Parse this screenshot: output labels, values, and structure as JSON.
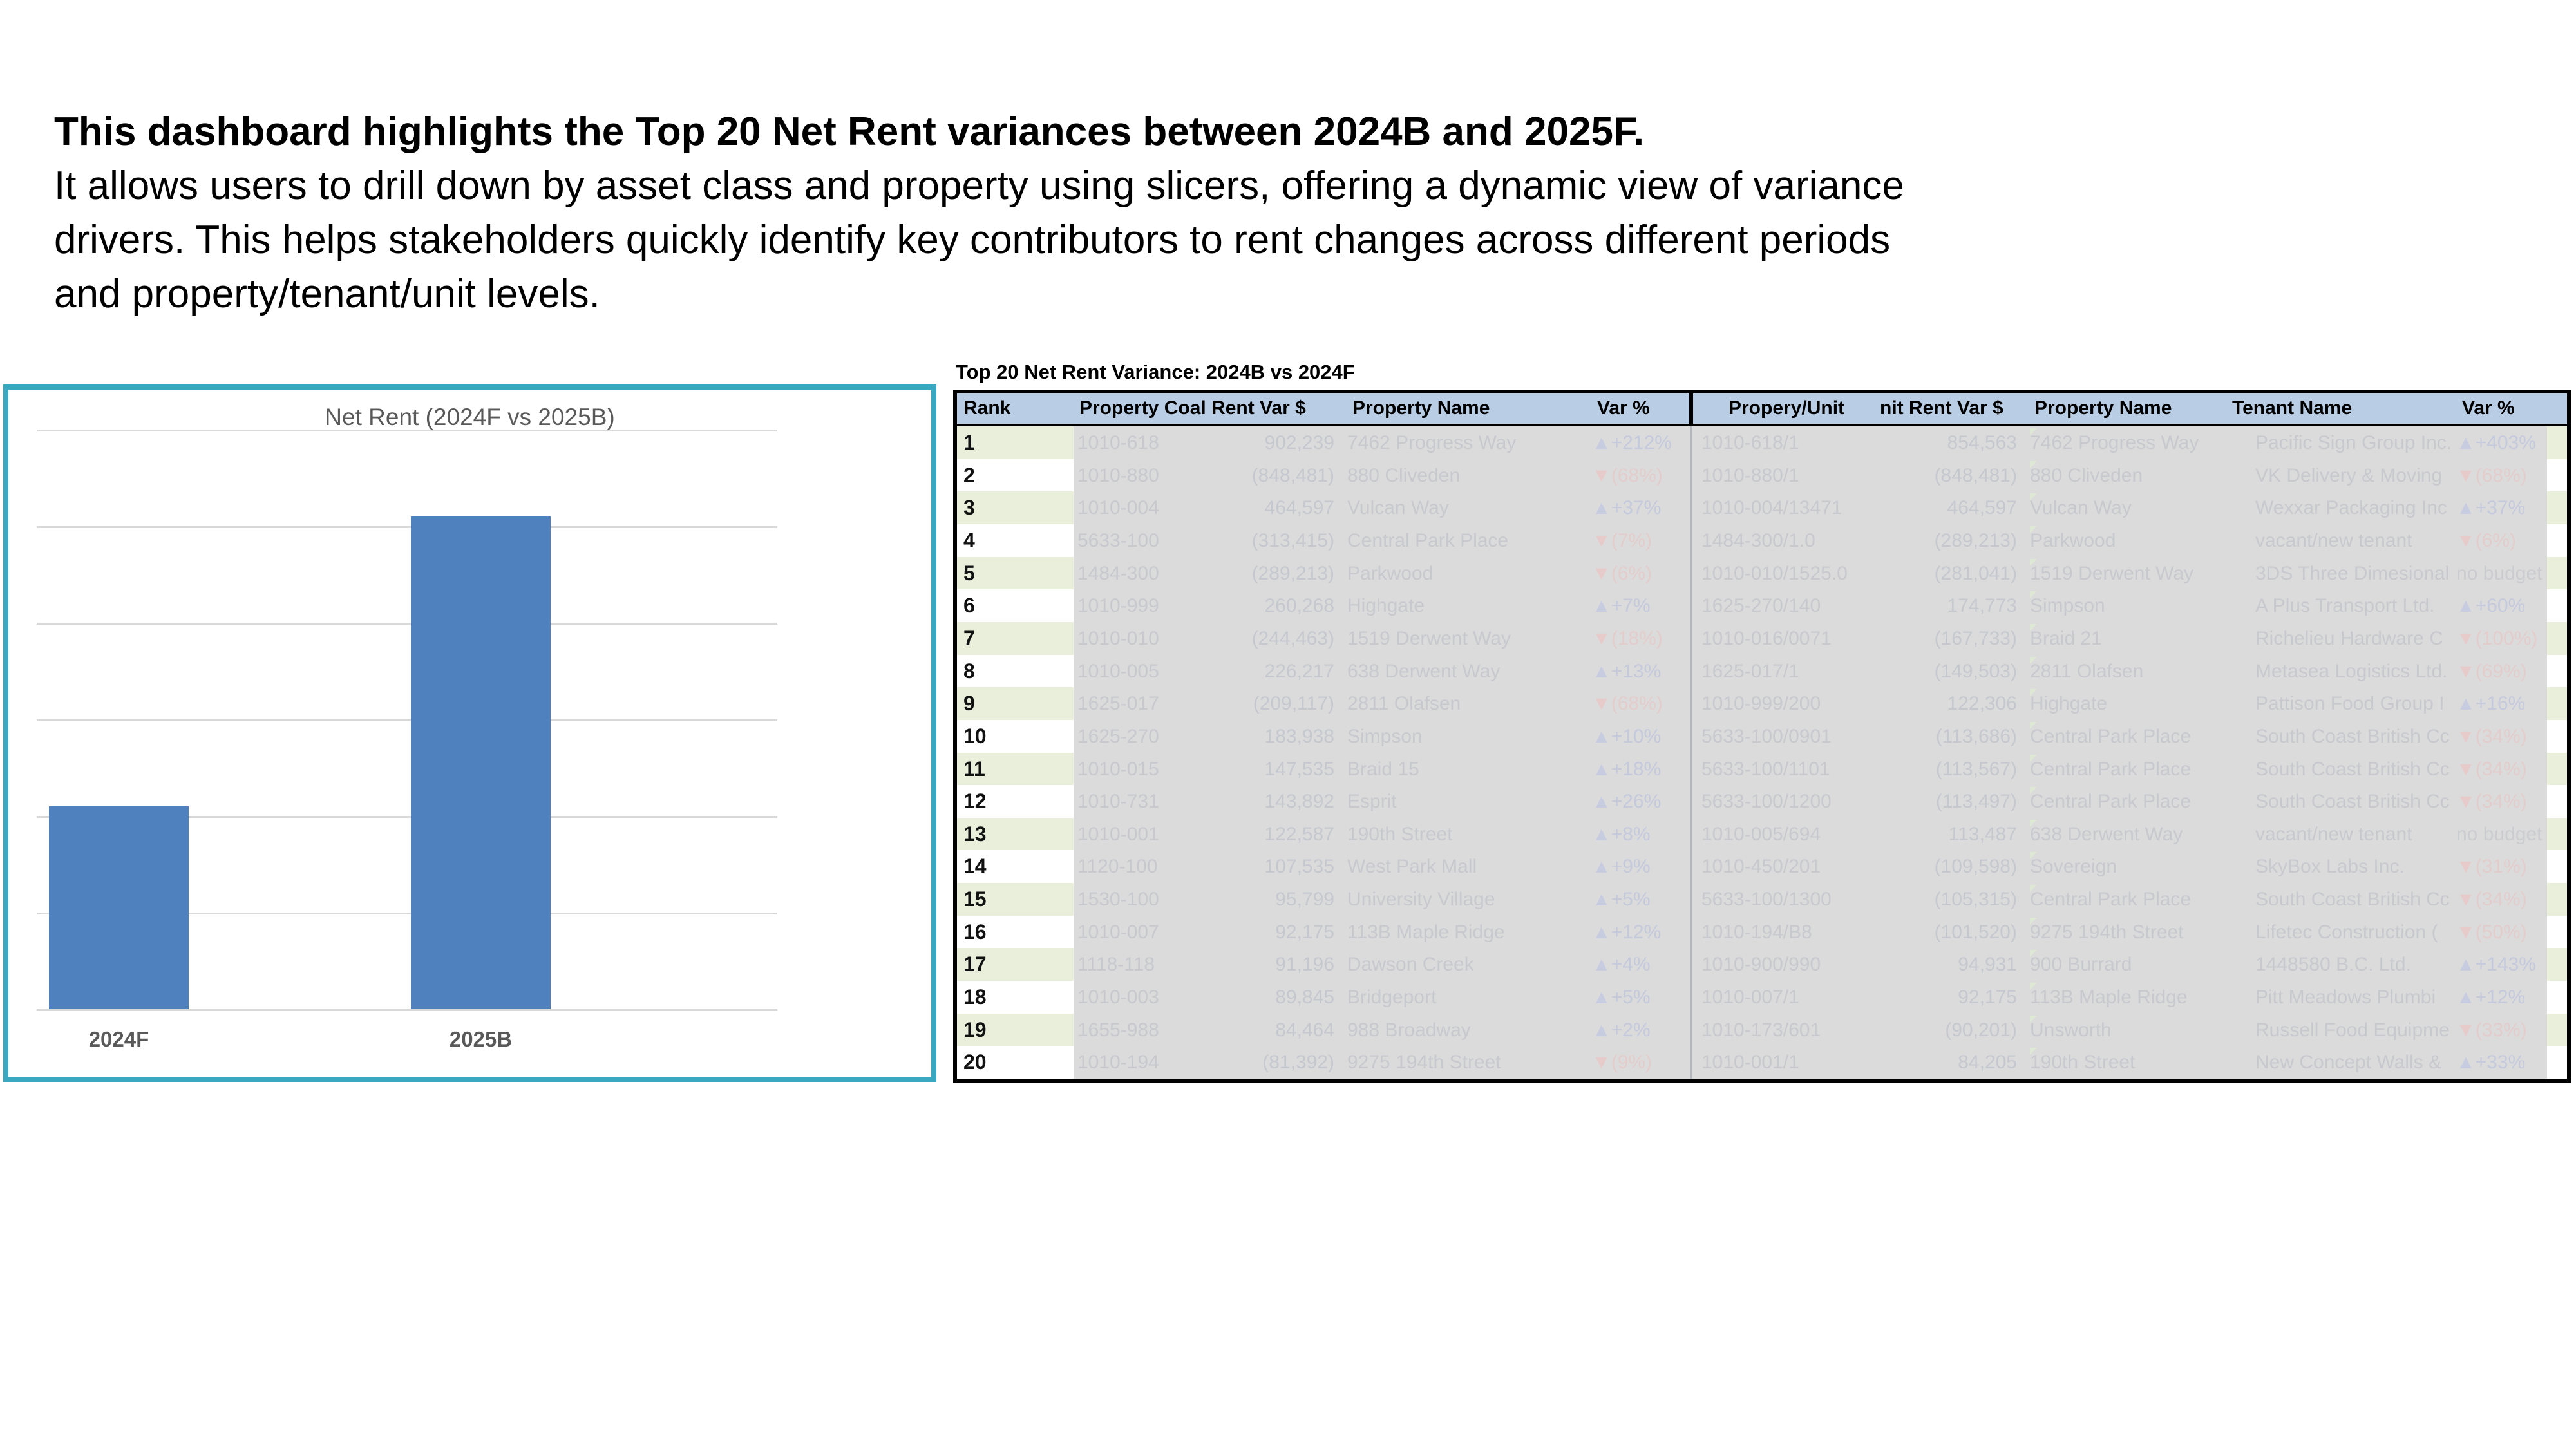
{
  "intro": {
    "lines": [
      "This dashboard highlights the Top 20 Net Rent variances between 2024B and 2025F.",
      "It allows users to drill down by asset class and property using slicers, offering a dynamic view of variance",
      "drivers. This helps stakeholders quickly identify key contributors to rent changes across different periods",
      "and property/tenant/unit levels."
    ]
  },
  "chart_data": {
    "type": "bar",
    "title": "Net Rent (2024F vs 2025B)",
    "categories": [
      "2024F",
      "2025B"
    ],
    "values": [
      2.1,
      5.1
    ],
    "ylim": [
      0,
      6
    ],
    "gridlines": 7,
    "grid_on": true,
    "bar_color": "#4E81BD",
    "border_color": "#3BA8C1",
    "xlabel": "",
    "ylabel": ""
  },
  "table": {
    "title": "Top 20 Net Rent Variance: 2024B vs 2024F",
    "headers": [
      "Rank",
      "Property Coal Rent Var $",
      "Property Name",
      "Var %",
      "Propery/Unit",
      "nit Rent Var $",
      "Property Name",
      "Tenant Name",
      "Var %"
    ],
    "colors": {
      "header_bg": "#B9CDE4",
      "stripe_green": "#EAEFDC",
      "redaction_gray": "#DBDBDB",
      "up_arrow": "#c7cce0",
      "down_arrow": "#e7cbca"
    },
    "rows": [
      {
        "rank": "1",
        "code": "1010-618",
        "amt": "902,239",
        "name": "7462 Progress Way",
        "dir": "up",
        "var": "+212%",
        "unit": "1010-618/1",
        "amt2": "854,563",
        "name2": "7462 Progress Way",
        "tenant": "Pacific Sign Group Inc.",
        "dir2": "up",
        "var2": "+403%"
      },
      {
        "rank": "2",
        "code": "1010-880",
        "amt": "(848,481)",
        "name": "880 Cliveden",
        "dir": "down",
        "var": "(68%)",
        "unit": "1010-880/1",
        "amt2": "(848,481)",
        "name2": "880 Cliveden",
        "tenant": "VK Delivery & Moving",
        "dir2": "down",
        "var2": "(68%)"
      },
      {
        "rank": "3",
        "code": "1010-004",
        "amt": "464,597",
        "name": "Vulcan Way",
        "dir": "up",
        "var": "+37%",
        "unit": "1010-004/13471",
        "amt2": "464,597",
        "name2": "Vulcan Way",
        "tenant": "Wexxar Packaging  Inc",
        "dir2": "up",
        "var2": "+37%"
      },
      {
        "rank": "4",
        "code": "5633-100",
        "amt": "(313,415)",
        "name": "Central Park Place",
        "dir": "down",
        "var": "(7%)",
        "unit": "1484-300/1.0",
        "amt2": "(289,213)",
        "name2": "Parkwood",
        "tenant": "vacant/new tenant",
        "dir2": "down",
        "var2": "(6%)"
      },
      {
        "rank": "5",
        "code": "1484-300",
        "amt": "(289,213)",
        "name": "Parkwood",
        "dir": "down",
        "var": "(6%)",
        "unit": "1010-010/1525.0",
        "amt2": "(281,041)",
        "name2": "1519 Derwent Way",
        "tenant": "3DS Three Dimesional",
        "dir2": "none",
        "var2": "no budget"
      },
      {
        "rank": "6",
        "code": "1010-999",
        "amt": "260,268",
        "name": "Highgate",
        "dir": "up",
        "var": "+7%",
        "unit": "1625-270/140",
        "amt2": "174,773",
        "name2": "Simpson",
        "tenant": "A Plus Transport Ltd.",
        "dir2": "up",
        "var2": "+60%"
      },
      {
        "rank": "7",
        "code": "1010-010",
        "amt": "(244,463)",
        "name": "1519 Derwent Way",
        "dir": "down",
        "var": "(18%)",
        "unit": "1010-016/0071",
        "amt2": "(167,733)",
        "name2": "Braid 21",
        "tenant": "Richelieu Hardware C",
        "dir2": "down",
        "var2": "(100%)"
      },
      {
        "rank": "8",
        "code": "1010-005",
        "amt": "226,217",
        "name": "638 Derwent Way",
        "dir": "up",
        "var": "+13%",
        "unit": "1625-017/1",
        "amt2": "(149,503)",
        "name2": "2811 Olafsen",
        "tenant": "Metasea Logistics Ltd.",
        "dir2": "down",
        "var2": "(69%)"
      },
      {
        "rank": "9",
        "code": "1625-017",
        "amt": "(209,117)",
        "name": "2811 Olafsen",
        "dir": "down",
        "var": "(68%)",
        "unit": "1010-999/200",
        "amt2": "122,306",
        "name2": "Highgate",
        "tenant": "Pattison Food Group I",
        "dir2": "up",
        "var2": "+16%"
      },
      {
        "rank": "10",
        "code": "1625-270",
        "amt": "183,938",
        "name": "Simpson",
        "dir": "up",
        "var": "+10%",
        "unit": "5633-100/0901",
        "amt2": "(113,686)",
        "name2": "Central Park Place",
        "tenant": "South Coast British Cc",
        "dir2": "down",
        "var2": "(34%)"
      },
      {
        "rank": "11",
        "code": "1010-015",
        "amt": "147,535",
        "name": "Braid 15",
        "dir": "up",
        "var": "+18%",
        "unit": "5633-100/1101",
        "amt2": "(113,567)",
        "name2": "Central Park Place",
        "tenant": "South Coast British Cc",
        "dir2": "down",
        "var2": "(34%)"
      },
      {
        "rank": "12",
        "code": "1010-731",
        "amt": "143,892",
        "name": "Esprit",
        "dir": "up",
        "var": "+26%",
        "unit": "5633-100/1200",
        "amt2": "(113,497)",
        "name2": "Central Park Place",
        "tenant": "South Coast British Cc",
        "dir2": "down",
        "var2": "(34%)"
      },
      {
        "rank": "13",
        "code": "1010-001",
        "amt": "122,587",
        "name": "190th Street",
        "dir": "up",
        "var": "+8%",
        "unit": "1010-005/694",
        "amt2": "113,487",
        "name2": "638 Derwent Way",
        "tenant": "vacant/new tenant",
        "dir2": "none",
        "var2": "no budget"
      },
      {
        "rank": "14",
        "code": "1120-100",
        "amt": "107,535",
        "name": "West Park Mall",
        "dir": "up",
        "var": "+9%",
        "unit": "1010-450/201",
        "amt2": "(109,598)",
        "name2": "Sovereign",
        "tenant": "SkyBox Labs Inc.",
        "dir2": "down",
        "var2": "(31%)"
      },
      {
        "rank": "15",
        "code": "1530-100",
        "amt": "95,799",
        "name": "University Village",
        "dir": "up",
        "var": "+5%",
        "unit": "5633-100/1300",
        "amt2": "(105,315)",
        "name2": "Central Park Place",
        "tenant": "South Coast British Cc",
        "dir2": "down",
        "var2": "(34%)"
      },
      {
        "rank": "16",
        "code": "1010-007",
        "amt": "92,175",
        "name": "113B Maple Ridge",
        "dir": "up",
        "var": "+12%",
        "unit": "1010-194/B8",
        "amt2": "(101,520)",
        "name2": "9275 194th Street",
        "tenant": "Lifetec Construction (",
        "dir2": "down",
        "var2": "(50%)"
      },
      {
        "rank": "17",
        "code": "1118-118",
        "amt": "91,196",
        "name": "Dawson Creek",
        "dir": "up",
        "var": "+4%",
        "unit": "1010-900/990",
        "amt2": "94,931",
        "name2": "900 Burrard",
        "tenant": "1448580 B.C. Ltd.",
        "dir2": "up",
        "var2": "+143%"
      },
      {
        "rank": "18",
        "code": "1010-003",
        "amt": "89,845",
        "name": "Bridgeport",
        "dir": "up",
        "var": "+5%",
        "unit": "1010-007/1",
        "amt2": "92,175",
        "name2": "113B Maple Ridge",
        "tenant": "Pitt Meadows Plumbi",
        "dir2": "up",
        "var2": "+12%"
      },
      {
        "rank": "19",
        "code": "1655-988",
        "amt": "84,464",
        "name": "988 Broadway",
        "dir": "up",
        "var": "+2%",
        "unit": "1010-173/601",
        "amt2": "(90,201)",
        "name2": "Unsworth",
        "tenant": "Russell Food Equipme",
        "dir2": "down",
        "var2": "(33%)"
      },
      {
        "rank": "20",
        "code": "1010-194",
        "amt": "(81,392)",
        "name": "9275 194th Street",
        "dir": "down",
        "var": "(9%)",
        "unit": "1010-001/1",
        "amt2": "84,205",
        "name2": "190th Street",
        "tenant": "New Concept Walls &",
        "dir2": "up",
        "var2": "+33%"
      }
    ]
  }
}
